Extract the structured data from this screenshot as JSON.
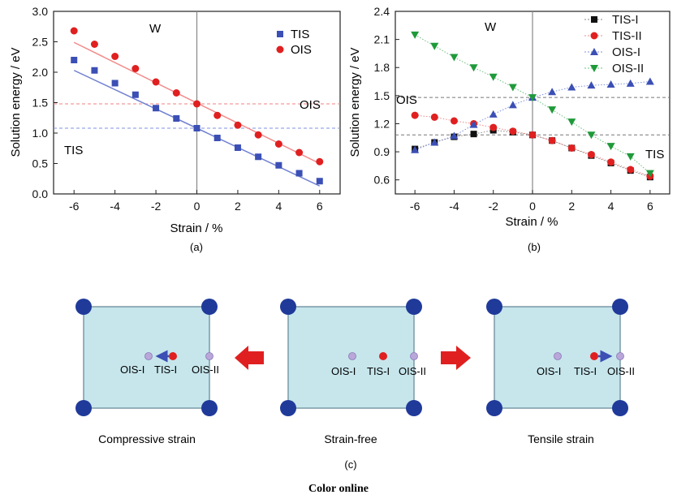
{
  "chart_data": [
    {
      "type": "scatter",
      "panel_label": "(a)",
      "xlabel": "Strain / %",
      "ylabel": "Solution energy / eV",
      "xlim": [
        -7,
        7
      ],
      "ylim": [
        0.0,
        3.0
      ],
      "xticks": [
        "-6",
        "-4",
        "-2",
        "0",
        "2",
        "4",
        "6"
      ],
      "yticks": [
        "0.0",
        "0.5",
        "1.0",
        "1.5",
        "2.0",
        "2.5",
        "3.0"
      ],
      "legend_position": "top-right",
      "annotations": {
        "w": "W",
        "ois": "OIS",
        "tis": "TIS"
      },
      "x": [
        -6,
        -5,
        -4,
        -3,
        -2,
        -1,
        0,
        1,
        2,
        3,
        4,
        5,
        6
      ],
      "series": [
        {
          "name": "TIS",
          "marker": "square",
          "color": "#3b4fb5",
          "values": [
            2.2,
            2.03,
            1.82,
            1.63,
            1.41,
            1.24,
            1.08,
            0.92,
            0.76,
            0.61,
            0.47,
            0.34,
            0.21
          ]
        },
        {
          "name": "OIS",
          "marker": "circle",
          "color": "#e02020",
          "values": [
            2.68,
            2.46,
            2.26,
            2.06,
            1.84,
            1.66,
            1.48,
            1.29,
            1.13,
            0.97,
            0.82,
            0.68,
            0.53
          ]
        }
      ],
      "fit_lines": [
        {
          "color": "#6f7fd0",
          "from": [
            -6,
            2.03
          ],
          "to": [
            6,
            0.13
          ]
        },
        {
          "color": "#f28a8a",
          "from": [
            -6,
            2.49
          ],
          "to": [
            6,
            0.5
          ]
        }
      ],
      "reference_lines": [
        {
          "y": 1.48,
          "color": "#f08080"
        },
        {
          "y": 1.08,
          "color": "#8090e0"
        }
      ]
    },
    {
      "type": "line",
      "panel_label": "(b)",
      "xlabel": "Strain / %",
      "ylabel": "Solution energy / eV",
      "xlim": [
        -7,
        7
      ],
      "ylim": [
        0.45,
        2.4
      ],
      "xticks": [
        "-6",
        "-4",
        "-2",
        "0",
        "2",
        "4",
        "6"
      ],
      "yticks": [
        "0.6",
        "0.9",
        "1.2",
        "1.5",
        "1.8",
        "2.1",
        "2.4"
      ],
      "legend_position": "top-right",
      "annotations": {
        "w": "W",
        "ois": "OIS",
        "tis": "TIS"
      },
      "reference_lines": [
        {
          "y": 1.48
        },
        {
          "y": 1.08
        }
      ],
      "x": [
        -6,
        -5,
        -4,
        -3,
        -2,
        -1,
        0,
        1,
        2,
        3,
        4,
        5,
        6
      ],
      "series": [
        {
          "name": "TIS-I",
          "marker": "square",
          "color": "#111111",
          "values": [
            0.93,
            1.0,
            1.06,
            1.09,
            1.13,
            1.11,
            1.08,
            1.02,
            0.94,
            0.86,
            0.78,
            0.7,
            0.63
          ]
        },
        {
          "name": "TIS-II",
          "marker": "circle",
          "color": "#e02020",
          "values": [
            1.29,
            1.27,
            1.23,
            1.2,
            1.16,
            1.12,
            1.08,
            1.02,
            0.94,
            0.87,
            0.79,
            0.71,
            0.64
          ]
        },
        {
          "name": "OIS-I",
          "marker": "triangle-up",
          "color": "#3b4fb5",
          "values": [
            0.92,
            1.0,
            1.07,
            1.19,
            1.3,
            1.4,
            1.48,
            1.54,
            1.59,
            1.61,
            1.62,
            1.63,
            1.65
          ]
        },
        {
          "name": "OIS-II",
          "marker": "triangle-down",
          "color": "#1f9a3a",
          "values": [
            2.15,
            2.03,
            1.91,
            1.8,
            1.7,
            1.59,
            1.48,
            1.35,
            1.22,
            1.08,
            0.96,
            0.85,
            0.67
          ]
        }
      ]
    }
  ],
  "panel_c": {
    "label": "(c)",
    "captions": [
      "Compressive strain",
      "Strain-free",
      "Tensile strain"
    ],
    "site_labels": {
      "ois_i": "OIS-I",
      "tis_i": "TIS-I",
      "ois_ii": "OIS-II"
    },
    "colors": {
      "cell_fill": "#c6e6ec",
      "cell_border": "#7a9aa6",
      "corner_atom": "#203a9a",
      "ois_site": "#b9a7d9",
      "tis_site": "#e02020",
      "arrow": "#e02020",
      "shift_arrow": "#3b4fb5"
    }
  },
  "footer": {
    "text": "Color online"
  }
}
